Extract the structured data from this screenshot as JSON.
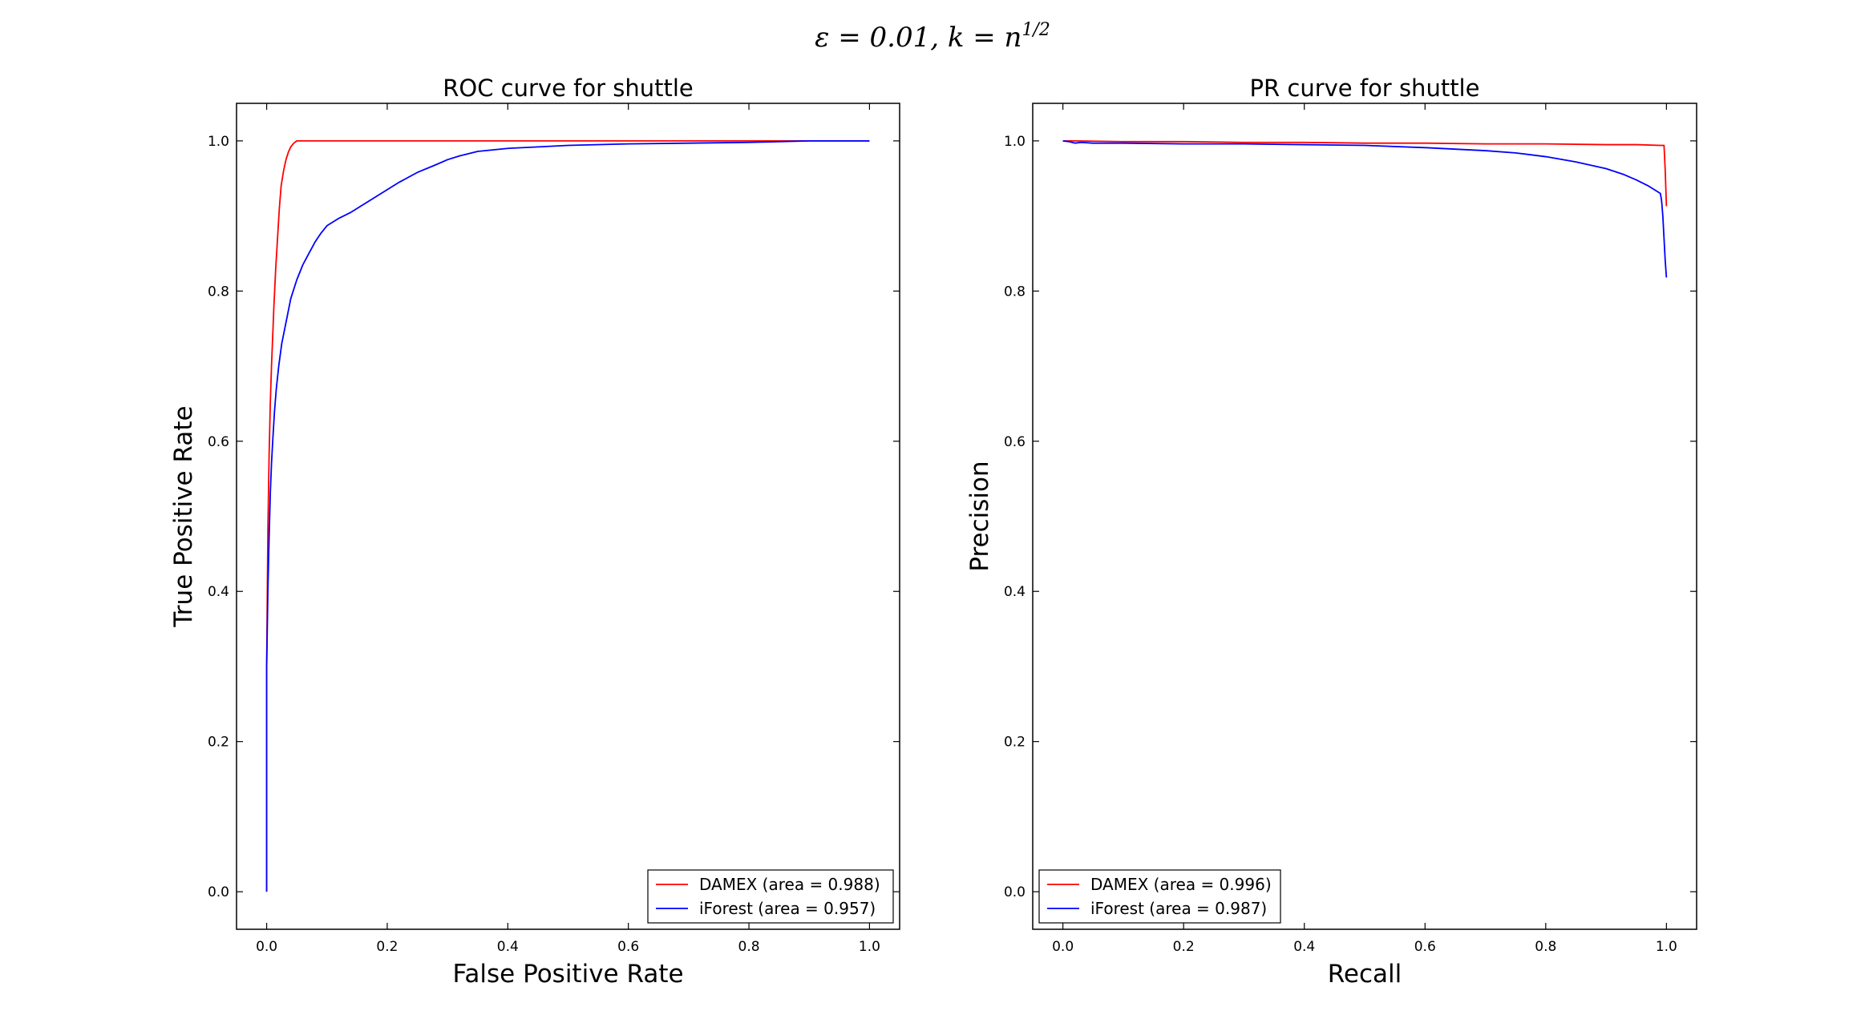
{
  "figure": {
    "suptitle": "ε = 0.01,  k = n",
    "suptitle_sup": "1/2"
  },
  "chart_data": [
    {
      "type": "line",
      "title": "ROC curve for shuttle",
      "xlabel": "False Positive Rate",
      "ylabel": "True Positive Rate",
      "xlim": [
        -0.05,
        1.05
      ],
      "ylim": [
        -0.05,
        1.05
      ],
      "xticks": [
        "0.0",
        "0.2",
        "0.4",
        "0.6",
        "0.8",
        "1.0"
      ],
      "yticks": [
        "0.0",
        "0.2",
        "0.4",
        "0.6",
        "0.8",
        "1.0"
      ],
      "grid": false,
      "legend_position": "lower right",
      "series": [
        {
          "name": "DAMEX (area = 0.988)",
          "color": "#ff0000",
          "x": [
            0.0,
            0.0,
            0.002,
            0.004,
            0.006,
            0.008,
            0.01,
            0.012,
            0.015,
            0.018,
            0.021,
            0.024,
            0.028,
            0.032,
            0.036,
            0.04,
            0.045,
            0.05,
            0.06,
            0.1,
            0.3,
            0.5,
            0.7,
            0.9,
            1.0
          ],
          "y": [
            0.0,
            0.3,
            0.48,
            0.58,
            0.65,
            0.7,
            0.74,
            0.78,
            0.83,
            0.87,
            0.91,
            0.94,
            0.96,
            0.975,
            0.985,
            0.992,
            0.997,
            1.0,
            1.0,
            1.0,
            1.0,
            1.0,
            1.0,
            1.0,
            1.0
          ]
        },
        {
          "name": "iForest (area = 0.957)",
          "color": "#0000ff",
          "x": [
            0.0,
            0.0,
            0.002,
            0.004,
            0.006,
            0.008,
            0.01,
            0.013,
            0.016,
            0.02,
            0.025,
            0.03,
            0.035,
            0.04,
            0.05,
            0.06,
            0.07,
            0.08,
            0.09,
            0.1,
            0.12,
            0.14,
            0.16,
            0.18,
            0.2,
            0.22,
            0.25,
            0.28,
            0.3,
            0.32,
            0.35,
            0.4,
            0.45,
            0.5,
            0.6,
            0.7,
            0.8,
            0.85,
            0.9,
            1.0
          ],
          "y": [
            0.0,
            0.3,
            0.4,
            0.47,
            0.53,
            0.57,
            0.6,
            0.64,
            0.67,
            0.7,
            0.73,
            0.75,
            0.77,
            0.79,
            0.815,
            0.835,
            0.85,
            0.865,
            0.877,
            0.887,
            0.897,
            0.905,
            0.915,
            0.925,
            0.935,
            0.945,
            0.958,
            0.968,
            0.975,
            0.98,
            0.986,
            0.99,
            0.992,
            0.994,
            0.996,
            0.997,
            0.998,
            0.999,
            1.0,
            1.0
          ]
        }
      ]
    },
    {
      "type": "line",
      "title": "PR curve for shuttle",
      "xlabel": "Recall",
      "ylabel": "Precision",
      "xlim": [
        -0.05,
        1.05
      ],
      "ylim": [
        -0.05,
        1.05
      ],
      "xticks": [
        "0.0",
        "0.2",
        "0.4",
        "0.6",
        "0.8",
        "1.0"
      ],
      "yticks": [
        "0.0",
        "0.2",
        "0.4",
        "0.6",
        "0.8",
        "1.0"
      ],
      "grid": false,
      "legend_position": "lower left",
      "series": [
        {
          "name": "DAMEX (area = 0.996)",
          "color": "#ff0000",
          "x": [
            0.0,
            0.02,
            0.1,
            0.2,
            0.3,
            0.4,
            0.5,
            0.6,
            0.7,
            0.8,
            0.9,
            0.95,
            0.99,
            0.996,
            0.998,
            1.0
          ],
          "y": [
            1.0,
            1.0,
            0.999,
            0.999,
            0.998,
            0.998,
            0.997,
            0.997,
            0.996,
            0.996,
            0.995,
            0.995,
            0.994,
            0.994,
            0.96,
            0.913
          ]
        },
        {
          "name": "iForest (area = 0.987)",
          "color": "#0000ff",
          "x": [
            0.0,
            0.01,
            0.02,
            0.03,
            0.05,
            0.1,
            0.2,
            0.3,
            0.4,
            0.5,
            0.6,
            0.65,
            0.7,
            0.75,
            0.8,
            0.85,
            0.9,
            0.93,
            0.95,
            0.97,
            0.98,
            0.99,
            0.992,
            0.994,
            0.996,
            0.998,
            1.0
          ],
          "y": [
            1.0,
            0.999,
            0.997,
            0.998,
            0.997,
            0.997,
            0.996,
            0.996,
            0.995,
            0.994,
            0.991,
            0.989,
            0.987,
            0.984,
            0.979,
            0.972,
            0.963,
            0.955,
            0.948,
            0.94,
            0.935,
            0.93,
            0.92,
            0.9,
            0.87,
            0.84,
            0.818
          ]
        }
      ]
    }
  ]
}
